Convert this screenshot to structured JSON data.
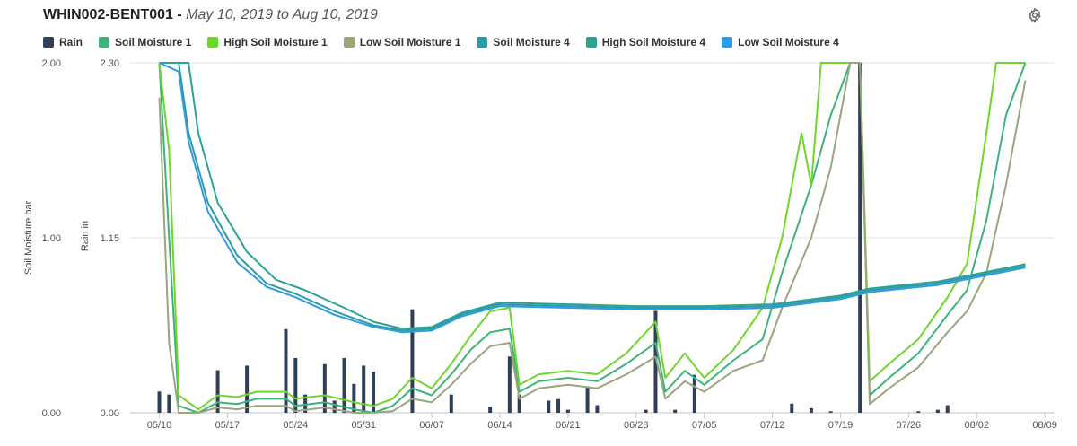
{
  "header": {
    "station": "WHIN002-BENT001",
    "separator": " - ",
    "range": "May 10, 2019 to Aug 10, 2019"
  },
  "legend": [
    {
      "name": "Rain",
      "color": "#2e3f58"
    },
    {
      "name": "Soil Moisture 1",
      "color": "#3bb37a"
    },
    {
      "name": "High Soil Moisture 1",
      "color": "#6ed62c"
    },
    {
      "name": "Low Soil Moisture 1",
      "color": "#9aa57c"
    },
    {
      "name": "Soil Moisture 4",
      "color": "#2e9aa6"
    },
    {
      "name": "High Soil Moisture 4",
      "color": "#2aa395"
    },
    {
      "name": "Low Soil Moisture 4",
      "color": "#2f9be3"
    }
  ],
  "chart_data": {
    "type": "line",
    "title": "WHIN002-BENT001 - May 10, 2019 to Aug 10, 2019",
    "x_start": "2019-05-10",
    "x_ticks": [
      "05/10",
      "05/17",
      "05/24",
      "05/31",
      "06/07",
      "06/14",
      "06/21",
      "06/28",
      "07/05",
      "07/12",
      "07/19",
      "07/26",
      "08/02",
      "08/09"
    ],
    "x_range": [
      "2019-05-07",
      "2019-08-10"
    ],
    "y_left": {
      "label": "Soil Moisture bar",
      "ticks": [
        "2.00",
        "1.00",
        "0.00"
      ],
      "range": [
        0,
        2
      ]
    },
    "y_right": {
      "label": "Rain in",
      "ticks": [
        "2.30",
        "1.15",
        "0.00"
      ],
      "range": [
        0,
        2.3
      ]
    },
    "grid": true,
    "legend_position": "top-left",
    "rain": [
      [
        "2019-05-10",
        0.14
      ],
      [
        "2019-05-11",
        0.12
      ],
      [
        "2019-05-16",
        0.28
      ],
      [
        "2019-05-19",
        0.31
      ],
      [
        "2019-05-23",
        0.55
      ],
      [
        "2019-05-24",
        0.36
      ],
      [
        "2019-05-25",
        0.12
      ],
      [
        "2019-05-27",
        0.32
      ],
      [
        "2019-05-28",
        0.08
      ],
      [
        "2019-05-29",
        0.36
      ],
      [
        "2019-05-30",
        0.19
      ],
      [
        "2019-05-31",
        0.31
      ],
      [
        "2019-06-01",
        0.27
      ],
      [
        "2019-06-05",
        0.68
      ],
      [
        "2019-06-09",
        0.12
      ],
      [
        "2019-06-13",
        0.04
      ],
      [
        "2019-06-15",
        0.37
      ],
      [
        "2019-06-16",
        0.12
      ],
      [
        "2019-06-19",
        0.08
      ],
      [
        "2019-06-20",
        0.09
      ],
      [
        "2019-06-21",
        0.02
      ],
      [
        "2019-06-23",
        0.17
      ],
      [
        "2019-06-24",
        0.05
      ],
      [
        "2019-06-29",
        0.02
      ],
      [
        "2019-06-30",
        0.67
      ],
      [
        "2019-07-02",
        0.02
      ],
      [
        "2019-07-04",
        0.25
      ],
      [
        "2019-07-14",
        0.06
      ],
      [
        "2019-07-16",
        0.03
      ],
      [
        "2019-07-18",
        0.01
      ],
      [
        "2019-07-21",
        2.3
      ],
      [
        "2019-07-27",
        0.01
      ],
      [
        "2019-07-29",
        0.02
      ],
      [
        "2019-07-30",
        0.05
      ]
    ],
    "series": [
      {
        "name": "Soil Moisture 1",
        "color": "#3bb37a",
        "points": [
          [
            "2019-05-10",
            2.0
          ],
          [
            "2019-05-11",
            1.0
          ],
          [
            "2019-05-12",
            0.04
          ],
          [
            "2019-05-14",
            0.0
          ],
          [
            "2019-05-16",
            0.06
          ],
          [
            "2019-05-18",
            0.05
          ],
          [
            "2019-05-20",
            0.08
          ],
          [
            "2019-05-23",
            0.08
          ],
          [
            "2019-05-24",
            0.04
          ],
          [
            "2019-05-27",
            0.06
          ],
          [
            "2019-05-30",
            0.02
          ],
          [
            "2019-06-01",
            0.0
          ],
          [
            "2019-06-03",
            0.04
          ],
          [
            "2019-06-05",
            0.14
          ],
          [
            "2019-06-07",
            0.1
          ],
          [
            "2019-06-09",
            0.22
          ],
          [
            "2019-06-11",
            0.36
          ],
          [
            "2019-06-13",
            0.46
          ],
          [
            "2019-06-15",
            0.48
          ],
          [
            "2019-06-16",
            0.12
          ],
          [
            "2019-06-18",
            0.18
          ],
          [
            "2019-06-21",
            0.2
          ],
          [
            "2019-06-24",
            0.18
          ],
          [
            "2019-06-27",
            0.28
          ],
          [
            "2019-06-30",
            0.4
          ],
          [
            "2019-07-01",
            0.12
          ],
          [
            "2019-07-03",
            0.24
          ],
          [
            "2019-07-05",
            0.16
          ],
          [
            "2019-07-08",
            0.3
          ],
          [
            "2019-07-11",
            0.42
          ],
          [
            "2019-07-13",
            0.8
          ],
          [
            "2019-07-16",
            1.3
          ],
          [
            "2019-07-18",
            1.7
          ],
          [
            "2019-07-20",
            2.0
          ],
          [
            "2019-07-21",
            2.0
          ],
          [
            "2019-07-22",
            0.1
          ],
          [
            "2019-07-24",
            0.2
          ],
          [
            "2019-07-27",
            0.34
          ],
          [
            "2019-07-30",
            0.56
          ],
          [
            "2019-08-01",
            0.7
          ],
          [
            "2019-08-03",
            1.1
          ],
          [
            "2019-08-05",
            1.7
          ],
          [
            "2019-08-07",
            2.0
          ]
        ]
      },
      {
        "name": "High Soil Moisture 1",
        "color": "#6ed62c",
        "points": [
          [
            "2019-05-10",
            2.0
          ],
          [
            "2019-05-11",
            1.5
          ],
          [
            "2019-05-12",
            0.1
          ],
          [
            "2019-05-14",
            0.02
          ],
          [
            "2019-05-16",
            0.1
          ],
          [
            "2019-05-18",
            0.09
          ],
          [
            "2019-05-20",
            0.12
          ],
          [
            "2019-05-23",
            0.12
          ],
          [
            "2019-05-24",
            0.08
          ],
          [
            "2019-05-27",
            0.1
          ],
          [
            "2019-05-30",
            0.06
          ],
          [
            "2019-06-01",
            0.04
          ],
          [
            "2019-06-03",
            0.08
          ],
          [
            "2019-06-05",
            0.2
          ],
          [
            "2019-06-07",
            0.14
          ],
          [
            "2019-06-09",
            0.28
          ],
          [
            "2019-06-11",
            0.44
          ],
          [
            "2019-06-13",
            0.58
          ],
          [
            "2019-06-15",
            0.6
          ],
          [
            "2019-06-16",
            0.16
          ],
          [
            "2019-06-18",
            0.22
          ],
          [
            "2019-06-21",
            0.24
          ],
          [
            "2019-06-24",
            0.22
          ],
          [
            "2019-06-27",
            0.34
          ],
          [
            "2019-06-30",
            0.52
          ],
          [
            "2019-07-01",
            0.2
          ],
          [
            "2019-07-03",
            0.34
          ],
          [
            "2019-07-05",
            0.2
          ],
          [
            "2019-07-08",
            0.36
          ],
          [
            "2019-07-11",
            0.6
          ],
          [
            "2019-07-13",
            1.0
          ],
          [
            "2019-07-15",
            1.6
          ],
          [
            "2019-07-16",
            1.3
          ],
          [
            "2019-07-17",
            2.0
          ],
          [
            "2019-07-20",
            2.0
          ],
          [
            "2019-07-21",
            2.0
          ],
          [
            "2019-07-22",
            0.18
          ],
          [
            "2019-07-24",
            0.28
          ],
          [
            "2019-07-27",
            0.42
          ],
          [
            "2019-07-30",
            0.66
          ],
          [
            "2019-08-01",
            0.85
          ],
          [
            "2019-08-03",
            1.6
          ],
          [
            "2019-08-04",
            2.0
          ],
          [
            "2019-08-07",
            2.0
          ]
        ]
      },
      {
        "name": "Low Soil Moisture 1",
        "color": "#9aa57c",
        "points": [
          [
            "2019-05-10",
            1.8
          ],
          [
            "2019-05-11",
            0.4
          ],
          [
            "2019-05-12",
            0.0
          ],
          [
            "2019-05-14",
            0.0
          ],
          [
            "2019-05-16",
            0.03
          ],
          [
            "2019-05-18",
            0.02
          ],
          [
            "2019-05-20",
            0.04
          ],
          [
            "2019-05-23",
            0.04
          ],
          [
            "2019-05-24",
            0.01
          ],
          [
            "2019-05-27",
            0.03
          ],
          [
            "2019-05-30",
            0.0
          ],
          [
            "2019-06-01",
            0.0
          ],
          [
            "2019-06-03",
            0.01
          ],
          [
            "2019-06-05",
            0.08
          ],
          [
            "2019-06-07",
            0.06
          ],
          [
            "2019-06-09",
            0.16
          ],
          [
            "2019-06-11",
            0.28
          ],
          [
            "2019-06-13",
            0.38
          ],
          [
            "2019-06-15",
            0.4
          ],
          [
            "2019-06-16",
            0.08
          ],
          [
            "2019-06-18",
            0.14
          ],
          [
            "2019-06-21",
            0.16
          ],
          [
            "2019-06-24",
            0.14
          ],
          [
            "2019-06-27",
            0.22
          ],
          [
            "2019-06-30",
            0.32
          ],
          [
            "2019-07-01",
            0.08
          ],
          [
            "2019-07-03",
            0.18
          ],
          [
            "2019-07-05",
            0.12
          ],
          [
            "2019-07-08",
            0.24
          ],
          [
            "2019-07-11",
            0.3
          ],
          [
            "2019-07-13",
            0.6
          ],
          [
            "2019-07-16",
            1.0
          ],
          [
            "2019-07-18",
            1.4
          ],
          [
            "2019-07-20",
            2.0
          ],
          [
            "2019-07-21",
            2.0
          ],
          [
            "2019-07-22",
            0.05
          ],
          [
            "2019-07-24",
            0.14
          ],
          [
            "2019-07-27",
            0.26
          ],
          [
            "2019-07-30",
            0.46
          ],
          [
            "2019-08-01",
            0.58
          ],
          [
            "2019-08-03",
            0.8
          ],
          [
            "2019-08-05",
            1.3
          ],
          [
            "2019-08-07",
            1.9
          ]
        ]
      },
      {
        "name": "Soil Moisture 4",
        "color": "#2e9aa6",
        "points": [
          [
            "2019-05-10",
            2.0
          ],
          [
            "2019-05-12",
            2.0
          ],
          [
            "2019-05-13",
            1.6
          ],
          [
            "2019-05-15",
            1.2
          ],
          [
            "2019-05-18",
            0.9
          ],
          [
            "2019-05-21",
            0.74
          ],
          [
            "2019-05-24",
            0.68
          ],
          [
            "2019-05-28",
            0.58
          ],
          [
            "2019-06-01",
            0.5
          ],
          [
            "2019-06-04",
            0.47
          ],
          [
            "2019-06-07",
            0.48
          ],
          [
            "2019-06-10",
            0.56
          ],
          [
            "2019-06-14",
            0.62
          ],
          [
            "2019-06-21",
            0.61
          ],
          [
            "2019-06-28",
            0.6
          ],
          [
            "2019-07-05",
            0.6
          ],
          [
            "2019-07-12",
            0.61
          ],
          [
            "2019-07-19",
            0.66
          ],
          [
            "2019-07-22",
            0.7
          ],
          [
            "2019-07-29",
            0.74
          ],
          [
            "2019-08-07",
            0.84
          ]
        ]
      },
      {
        "name": "High Soil Moisture 4",
        "color": "#2aa395",
        "points": [
          [
            "2019-05-10",
            2.0
          ],
          [
            "2019-05-13",
            2.0
          ],
          [
            "2019-05-14",
            1.6
          ],
          [
            "2019-05-16",
            1.2
          ],
          [
            "2019-05-19",
            0.92
          ],
          [
            "2019-05-22",
            0.76
          ],
          [
            "2019-05-25",
            0.7
          ],
          [
            "2019-05-29",
            0.6
          ],
          [
            "2019-06-01",
            0.52
          ],
          [
            "2019-06-04",
            0.48
          ],
          [
            "2019-06-07",
            0.49
          ],
          [
            "2019-06-10",
            0.57
          ],
          [
            "2019-06-14",
            0.63
          ],
          [
            "2019-06-21",
            0.62
          ],
          [
            "2019-06-28",
            0.61
          ],
          [
            "2019-07-05",
            0.61
          ],
          [
            "2019-07-12",
            0.62
          ],
          [
            "2019-07-19",
            0.67
          ],
          [
            "2019-07-22",
            0.71
          ],
          [
            "2019-07-29",
            0.75
          ],
          [
            "2019-08-07",
            0.85
          ]
        ]
      },
      {
        "name": "Low Soil Moisture 4",
        "color": "#2f9be3",
        "points": [
          [
            "2019-05-10",
            2.0
          ],
          [
            "2019-05-12",
            1.95
          ],
          [
            "2019-05-13",
            1.55
          ],
          [
            "2019-05-15",
            1.15
          ],
          [
            "2019-05-18",
            0.86
          ],
          [
            "2019-05-21",
            0.72
          ],
          [
            "2019-05-24",
            0.66
          ],
          [
            "2019-05-28",
            0.56
          ],
          [
            "2019-06-01",
            0.49
          ],
          [
            "2019-06-04",
            0.46
          ],
          [
            "2019-06-07",
            0.47
          ],
          [
            "2019-06-10",
            0.55
          ],
          [
            "2019-06-14",
            0.61
          ],
          [
            "2019-06-21",
            0.6
          ],
          [
            "2019-06-28",
            0.59
          ],
          [
            "2019-07-05",
            0.59
          ],
          [
            "2019-07-12",
            0.6
          ],
          [
            "2019-07-19",
            0.65
          ],
          [
            "2019-07-22",
            0.69
          ],
          [
            "2019-07-29",
            0.73
          ],
          [
            "2019-08-07",
            0.83
          ]
        ]
      }
    ]
  }
}
